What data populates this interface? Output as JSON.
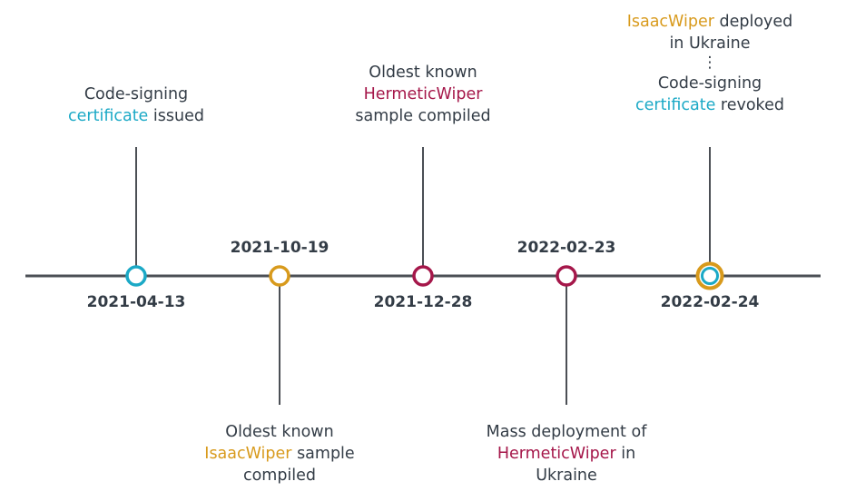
{
  "colors": {
    "axis": "#4b4f55",
    "teal": "#1ba9c6",
    "gold": "#d89a1c",
    "crimson": "#a5174a",
    "text": "#333c46"
  },
  "events": [
    {
      "date": "2021-04-13",
      "label": {
        "before": "Code-signing",
        "highlight": "certificate",
        "after": "issued"
      },
      "color": "teal"
    },
    {
      "date": "2021-10-19",
      "label": {
        "before": "Oldest known",
        "highlight": "IsaacWiper",
        "after": "sample compiled"
      },
      "color": "gold"
    },
    {
      "date": "2021-12-28",
      "label": {
        "before": "Oldest known",
        "highlight": "HermeticWiper",
        "after": "sample compiled"
      },
      "color": "crimson"
    },
    {
      "date": "2022-02-23",
      "label": {
        "before": "Mass deployment of",
        "highlight": "HermeticWiper",
        "after": "in Ukraine"
      },
      "color": "crimson"
    },
    {
      "date": "2022-02-24",
      "label_top": {
        "highlight": "IsaacWiper",
        "after": "deployed in Ukraine"
      },
      "separator": "⋮",
      "label_bottom": {
        "before": "Code-signing",
        "highlight": "certificate",
        "after": "revoked"
      },
      "color_outer": "gold",
      "color_inner": "teal"
    }
  ]
}
